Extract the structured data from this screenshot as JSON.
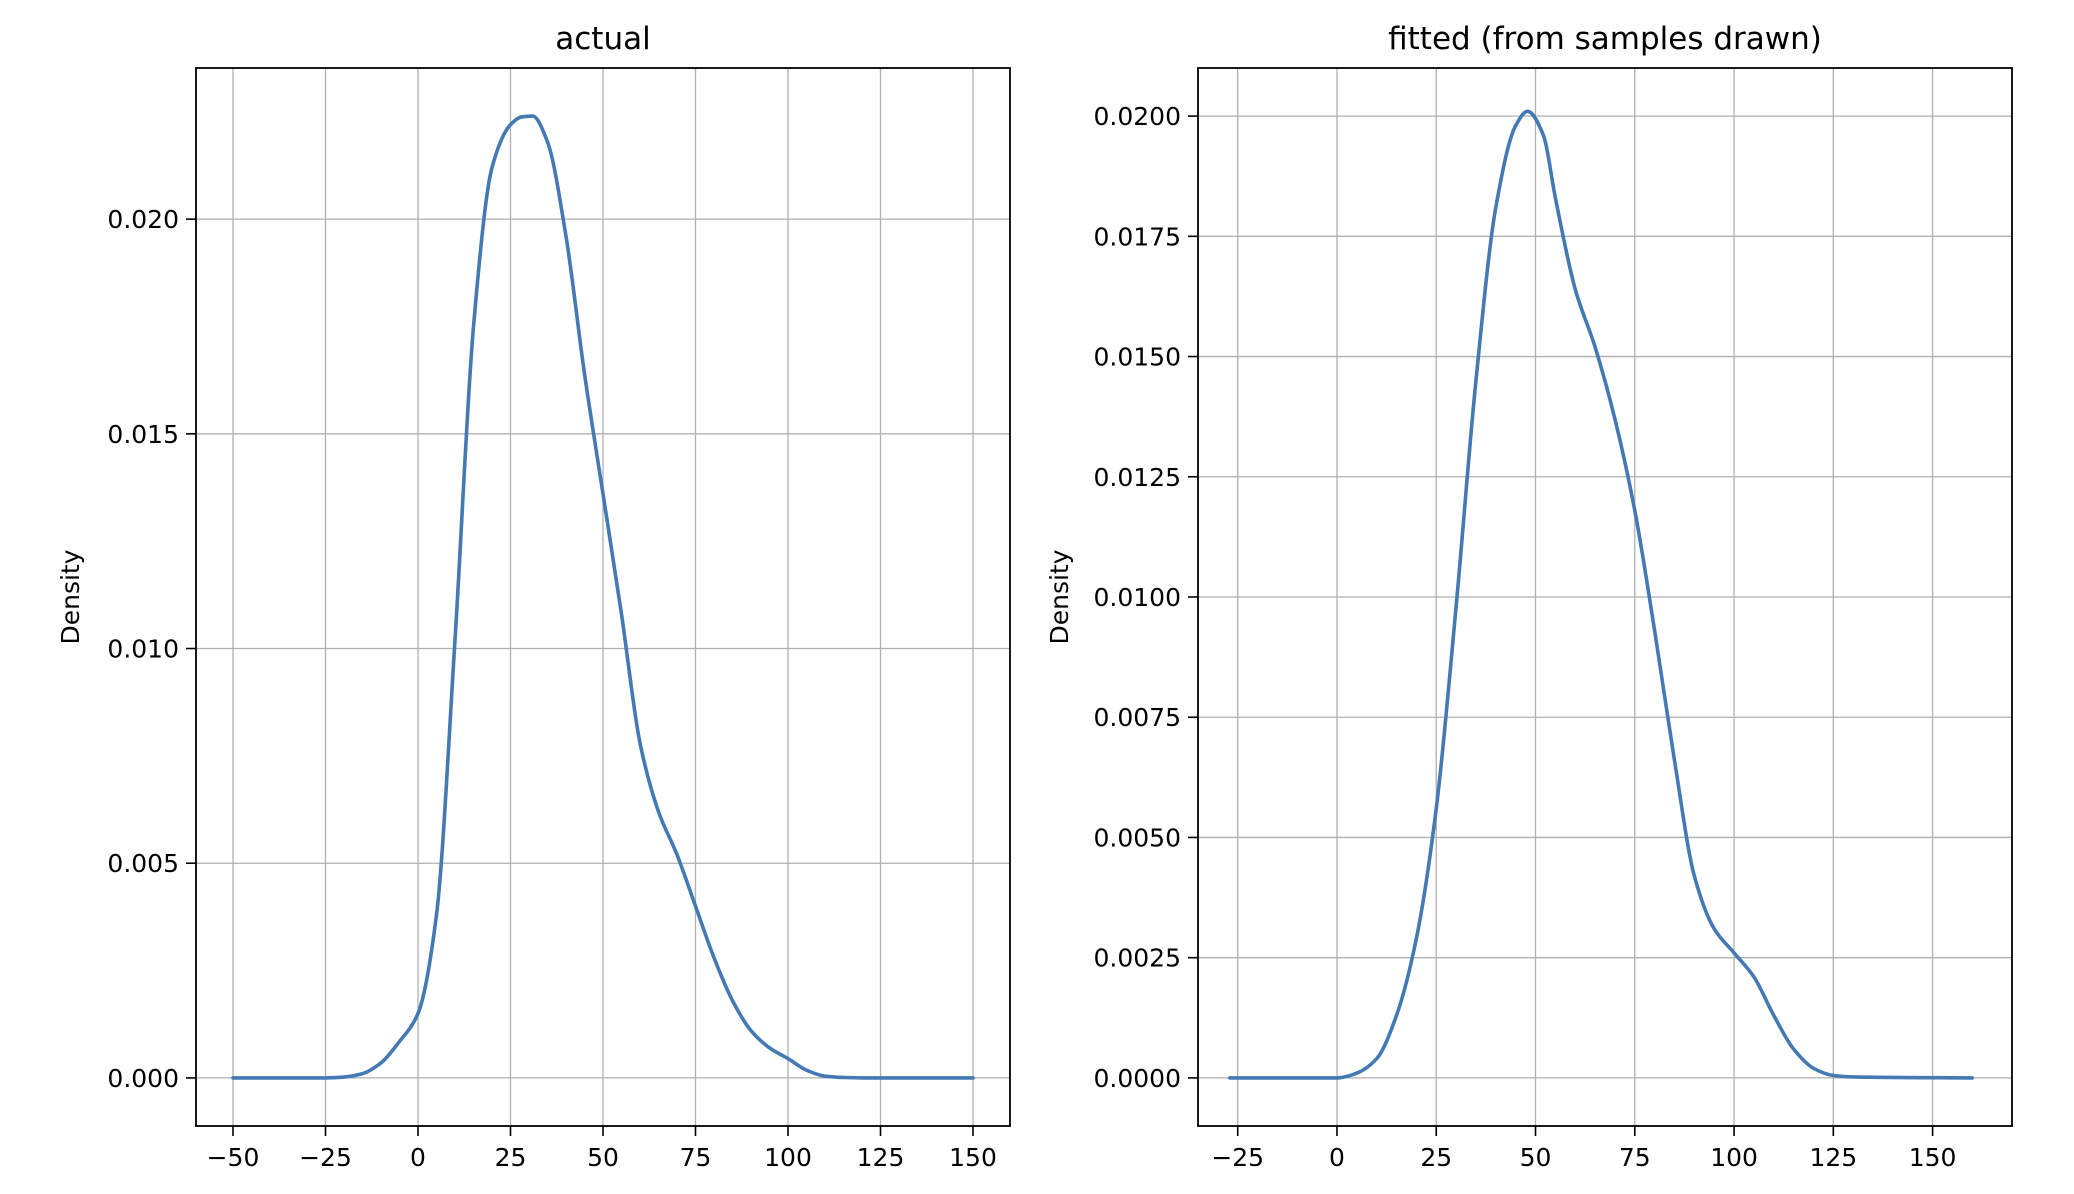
{
  "chart_data": [
    {
      "type": "line",
      "title": "actual",
      "xlabel": "",
      "ylabel": "Density",
      "xlim": [
        -60,
        160
      ],
      "ylim": [
        -0.00112,
        0.02352
      ],
      "xticks": [
        -50,
        -25,
        0,
        25,
        50,
        75,
        100,
        125,
        150
      ],
      "xtick_labels": [
        "−50",
        "−25",
        "0",
        "25",
        "50",
        "75",
        "100",
        "125",
        "150"
      ],
      "yticks": [
        0.0,
        0.005,
        0.01,
        0.015,
        0.02
      ],
      "ytick_labels": [
        "0.000",
        "0.005",
        "0.010",
        "0.015",
        "0.020"
      ],
      "grid": true,
      "series": [
        {
          "color": "#4479b4",
          "x": [
            -50,
            -25,
            -20,
            -15,
            -10,
            -5,
            0,
            5,
            10,
            15,
            20,
            25,
            28,
            31,
            35,
            40,
            45,
            50,
            55,
            60,
            65,
            70,
            75,
            80,
            85,
            90,
            95,
            100,
            105,
            110,
            115,
            120,
            130,
            150
          ],
          "y": [
            0.0,
            0.0,
            2e-05,
            0.0001,
            0.00035,
            0.00085,
            0.0015,
            0.0038,
            0.0102,
            0.0175,
            0.0212,
            0.0222,
            0.02238,
            0.0224,
            0.0218,
            0.0196,
            0.0164,
            0.0136,
            0.0108,
            0.0078,
            0.0062,
            0.0052,
            0.004,
            0.0028,
            0.0018,
            0.0011,
            0.0007,
            0.00045,
            0.00018,
            4e-05,
            1e-05,
            0.0,
            0.0,
            0.0
          ]
        }
      ]
    },
    {
      "type": "line",
      "title": "fitted (from samples drawn)",
      "xlabel": "",
      "ylabel": "Density",
      "xlim": [
        -35,
        170
      ],
      "ylim": [
        -0.001,
        0.021
      ],
      "xticks": [
        -25,
        0,
        25,
        50,
        75,
        100,
        125,
        150
      ],
      "xtick_labels": [
        "−25",
        "0",
        "25",
        "50",
        "75",
        "100",
        "125",
        "150"
      ],
      "yticks": [
        0.0,
        0.0025,
        0.005,
        0.0075,
        0.01,
        0.0125,
        0.015,
        0.0175,
        0.02
      ],
      "ytick_labels": [
        "0.0000",
        "0.0025",
        "0.0050",
        "0.0075",
        "0.0100",
        "0.0125",
        "0.0150",
        "0.0175",
        "0.0200"
      ],
      "grid": true,
      "series": [
        {
          "color": "#4479b4",
          "x": [
            -27,
            0,
            5,
            10,
            15,
            20,
            25,
            30,
            35,
            40,
            45,
            48,
            52,
            55,
            60,
            65,
            70,
            75,
            80,
            85,
            90,
            95,
            100,
            105,
            110,
            115,
            120,
            125,
            130,
            160
          ],
          "y": [
            0.0,
            0.0,
            0.0001,
            0.0004,
            0.0013,
            0.0029,
            0.0056,
            0.0098,
            0.0145,
            0.0181,
            0.0198,
            0.0201,
            0.0196,
            0.0183,
            0.0164,
            0.0152,
            0.0137,
            0.0118,
            0.0093,
            0.0066,
            0.0042,
            0.0031,
            0.0026,
            0.0021,
            0.0013,
            0.0006,
            0.0002,
            5e-05,
            2e-05,
            0.0
          ]
        }
      ]
    }
  ]
}
